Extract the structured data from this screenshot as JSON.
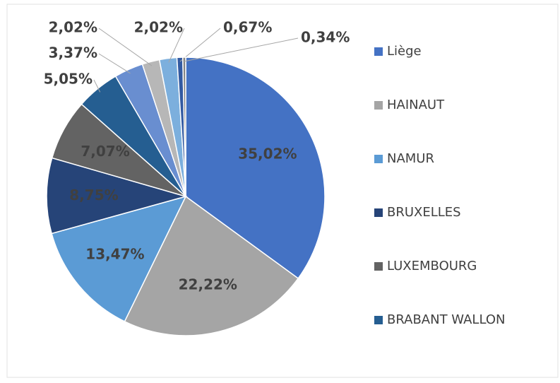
{
  "chart_data": {
    "type": "pie",
    "categories": [
      "Liège",
      "HAINAUT",
      "NAMUR",
      "BRUXELLES",
      "LUXEMBOURG",
      "BRABANT WALLON",
      null,
      null,
      null,
      null,
      null
    ],
    "values": [
      35.02,
      22.22,
      13.47,
      8.75,
      7.07,
      5.05,
      3.37,
      2.02,
      2.02,
      0.67,
      0.34
    ],
    "value_labels": [
      "35,02%",
      "22,22%",
      "13,47%",
      "8,75%",
      "7,07%",
      "5,05%",
      "3,37%",
      "2,02%",
      "2,02%",
      "0,67%",
      "0,34%"
    ],
    "colors": [
      "#4472c4",
      "#a5a5a5",
      "#5b9bd5",
      "#264478",
      "#636363",
      "#255e91",
      "#698ed0",
      "#b7b7b7",
      "#7cafdd",
      "#335aa1",
      "#848484"
    ],
    "legend": "right"
  }
}
